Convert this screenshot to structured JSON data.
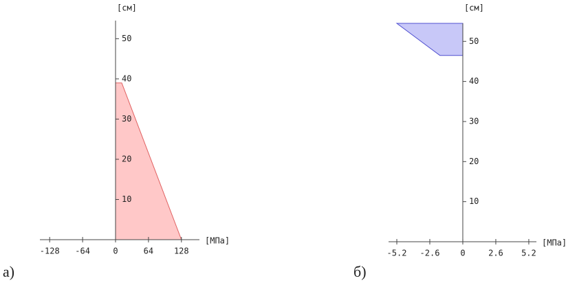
{
  "chart_data": [
    {
      "type": "area",
      "panel_label": "а)",
      "x_label": "[МПа]",
      "y_label": "[см]",
      "x": [
        0,
        0,
        12,
        128
      ],
      "y": [
        0,
        39,
        39,
        0
      ],
      "color": "#ffc8c8",
      "edge_color": "#e06060",
      "xlim": [
        -147,
        163
      ],
      "ylim": [
        0,
        54.5
      ],
      "xticks": [
        -128,
        -64,
        0,
        64,
        128
      ],
      "yticks": [
        10,
        20,
        30,
        40,
        50
      ]
    },
    {
      "type": "area",
      "panel_label": "б)",
      "x_label": "[МПа]",
      "y_label": "[см]",
      "x": [
        -5.2,
        0,
        0,
        -1.8
      ],
      "y": [
        54.5,
        54.5,
        46.5,
        46.5
      ],
      "color": "#c8c8f8",
      "edge_color": "#5050d0",
      "xlim": [
        -5.85,
        5.8
      ],
      "ylim": [
        0,
        54.5
      ],
      "xticks": [
        -5.2,
        -2.6,
        0,
        2.6,
        5.2
      ],
      "yticks": [
        10,
        20,
        30,
        40,
        50
      ]
    }
  ]
}
